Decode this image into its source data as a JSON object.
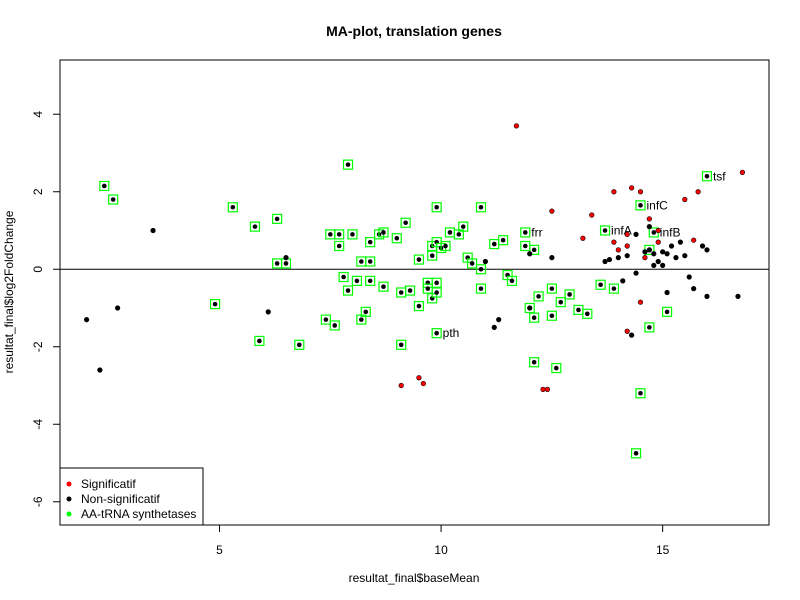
{
  "chart_data": {
    "type": "scatter",
    "title": "MA-plot, translation genes",
    "xlabel": "resultat_final$baseMean",
    "ylabel": "resultat_final$log2FoldChange",
    "xlim": [
      1.4,
      17.4
    ],
    "ylim": [
      -6.6,
      5.4
    ],
    "x_ticks": [
      5,
      10,
      15
    ],
    "y_ticks": [
      -6,
      -4,
      -2,
      0,
      2,
      4
    ],
    "hline": 0,
    "grid": false,
    "legend": {
      "position": "bottom-left",
      "entries": [
        {
          "label": "Significatif",
          "color": "#ff0000"
        },
        {
          "label": "Non-significatif",
          "color": "#000000"
        },
        {
          "label": "AA-tRNA synthetases",
          "color": "#00ff00"
        }
      ]
    },
    "series": [
      {
        "name": "Significatif",
        "color": "#ff0000",
        "marker": "filled-circle",
        "points": [
          [
            11.7,
            3.7
          ],
          [
            16.8,
            2.5
          ],
          [
            15.8,
            2.0
          ],
          [
            15.5,
            1.8
          ],
          [
            14.3,
            2.1
          ],
          [
            14.5,
            2.0
          ],
          [
            13.9,
            2.0
          ],
          [
            12.5,
            1.5
          ],
          [
            13.4,
            1.4
          ],
          [
            14.7,
            1.3
          ],
          [
            14.9,
            1.0
          ],
          [
            14.2,
            0.9
          ],
          [
            13.2,
            0.8
          ],
          [
            13.9,
            0.7
          ],
          [
            15.7,
            0.75
          ],
          [
            14.9,
            0.7
          ],
          [
            14.0,
            0.5
          ],
          [
            14.2,
            0.6
          ],
          [
            14.6,
            0.3
          ],
          [
            14.5,
            -0.85
          ],
          [
            14.2,
            -1.6
          ],
          [
            12.3,
            -3.1
          ],
          [
            12.4,
            -3.1
          ],
          [
            9.1,
            -3.0
          ],
          [
            9.5,
            -2.8
          ],
          [
            9.6,
            -2.95
          ]
        ]
      },
      {
        "name": "Non-significatif",
        "color": "#000000",
        "marker": "filled-circle",
        "points": [
          [
            3.5,
            1.0
          ],
          [
            2.7,
            -1.0
          ],
          [
            2.3,
            -2.6
          ],
          [
            2.0,
            -1.3
          ],
          [
            6.1,
            -1.1
          ],
          [
            6.5,
            0.3
          ],
          [
            11.2,
            -1.5
          ],
          [
            11.3,
            -1.3
          ],
          [
            12.0,
            0.4
          ],
          [
            12.5,
            0.3
          ],
          [
            14.0,
            0.3
          ],
          [
            14.2,
            0.35
          ],
          [
            14.6,
            0.45
          ],
          [
            14.7,
            0.5
          ],
          [
            14.8,
            0.4
          ],
          [
            15.0,
            0.45
          ],
          [
            15.1,
            0.4
          ],
          [
            14.9,
            0.2
          ],
          [
            15.3,
            0.3
          ],
          [
            15.5,
            0.35
          ],
          [
            15.9,
            0.6
          ],
          [
            16.0,
            0.5
          ],
          [
            15.2,
            0.6
          ],
          [
            15.4,
            0.7
          ],
          [
            14.4,
            0.9
          ],
          [
            14.7,
            1.1
          ],
          [
            13.7,
            0.2
          ],
          [
            13.8,
            0.25
          ],
          [
            14.1,
            -0.3
          ],
          [
            14.4,
            -0.1
          ],
          [
            14.8,
            0.1
          ],
          [
            15.0,
            0.1
          ],
          [
            15.7,
            -0.5
          ],
          [
            15.6,
            -0.2
          ],
          [
            15.1,
            -0.6
          ],
          [
            16.0,
            -0.7
          ],
          [
            16.7,
            -0.7
          ],
          [
            14.3,
            -1.7
          ],
          [
            11.0,
            0.2
          ],
          [
            12.0,
            -1.0
          ]
        ]
      },
      {
        "name": "AA-tRNA synthetases",
        "color": "#00ff00",
        "marker": "square",
        "points": [
          [
            2.4,
            2.15
          ],
          [
            2.6,
            1.8
          ],
          [
            7.9,
            2.7
          ],
          [
            5.3,
            1.6
          ],
          [
            5.8,
            1.1
          ],
          [
            6.3,
            1.3
          ],
          [
            6.3,
            0.15
          ],
          [
            6.5,
            0.15
          ],
          [
            7.5,
            0.9
          ],
          [
            7.7,
            0.9
          ],
          [
            7.7,
            0.6
          ],
          [
            8.0,
            0.9
          ],
          [
            8.4,
            0.7
          ],
          [
            8.6,
            0.9
          ],
          [
            8.7,
            0.95
          ],
          [
            9.0,
            0.8
          ],
          [
            9.2,
            1.2
          ],
          [
            9.8,
            0.6
          ],
          [
            9.8,
            0.35
          ],
          [
            9.9,
            0.7
          ],
          [
            10.0,
            0.55
          ],
          [
            10.1,
            0.6
          ],
          [
            10.2,
            0.95
          ],
          [
            10.4,
            0.9
          ],
          [
            10.5,
            1.1
          ],
          [
            9.9,
            1.6
          ],
          [
            10.9,
            1.6
          ],
          [
            10.6,
            0.3
          ],
          [
            10.7,
            0.15
          ],
          [
            10.9,
            0.0
          ],
          [
            10.9,
            -0.5
          ],
          [
            11.2,
            0.65
          ],
          [
            11.4,
            0.75
          ],
          [
            11.5,
            -0.15
          ],
          [
            11.6,
            -0.3
          ],
          [
            11.9,
            0.95
          ],
          [
            11.9,
            0.6
          ],
          [
            12.1,
            0.5
          ],
          [
            8.2,
            0.2
          ],
          [
            8.4,
            0.2
          ],
          [
            9.5,
            0.25
          ],
          [
            7.8,
            -0.2
          ],
          [
            7.9,
            -0.55
          ],
          [
            8.1,
            -0.3
          ],
          [
            8.4,
            -0.3
          ],
          [
            8.7,
            -0.45
          ],
          [
            9.1,
            -0.6
          ],
          [
            9.3,
            -0.55
          ],
          [
            9.5,
            -0.95
          ],
          [
            9.7,
            -0.35
          ],
          [
            9.7,
            -0.5
          ],
          [
            9.8,
            -0.75
          ],
          [
            9.9,
            -0.35
          ],
          [
            9.9,
            -0.6
          ],
          [
            8.3,
            -1.1
          ],
          [
            8.2,
            -1.3
          ],
          [
            7.4,
            -1.3
          ],
          [
            7.6,
            -1.45
          ],
          [
            5.9,
            -1.85
          ],
          [
            4.9,
            -0.9
          ],
          [
            6.8,
            -1.95
          ],
          [
            9.1,
            -1.95
          ],
          [
            9.9,
            -1.65
          ],
          [
            12.0,
            -1.0
          ],
          [
            12.1,
            -1.25
          ],
          [
            12.2,
            -0.7
          ],
          [
            12.5,
            -1.2
          ],
          [
            12.5,
            -0.5
          ],
          [
            12.7,
            -0.85
          ],
          [
            12.9,
            -0.65
          ],
          [
            13.1,
            -1.05
          ],
          [
            13.3,
            -1.15
          ],
          [
            13.6,
            -0.4
          ],
          [
            13.9,
            -0.5
          ],
          [
            12.1,
            -2.4
          ],
          [
            12.6,
            -2.55
          ],
          [
            14.5,
            -3.2
          ],
          [
            14.4,
            -4.75
          ],
          [
            14.7,
            -1.5
          ],
          [
            15.1,
            -1.1
          ],
          [
            16.0,
            2.4
          ],
          [
            14.5,
            1.65
          ],
          [
            13.7,
            1.0
          ],
          [
            14.8,
            0.95
          ],
          [
            14.7,
            0.5
          ]
        ]
      }
    ],
    "annotations": [
      {
        "text": "tsf",
        "x": 16.0,
        "y": 2.4
      },
      {
        "text": "infC",
        "x": 14.5,
        "y": 1.65
      },
      {
        "text": "frr",
        "x": 11.9,
        "y": 0.95
      },
      {
        "text": "infA",
        "x": 13.7,
        "y": 1.0
      },
      {
        "text": "infB",
        "x": 14.8,
        "y": 0.95
      },
      {
        "text": "pth",
        "x": 9.9,
        "y": -1.65
      }
    ]
  }
}
